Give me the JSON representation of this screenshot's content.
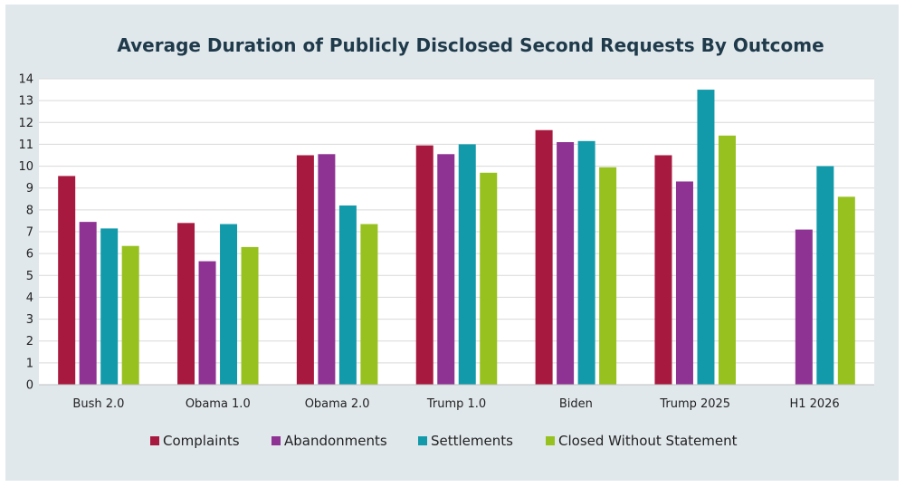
{
  "chart_data": {
    "type": "bar",
    "title": "Average Duration of Publicly Disclosed Second Requests By Outcome",
    "xlabel": "",
    "ylabel": "",
    "ylim": [
      0,
      14
    ],
    "yticks": [
      0,
      1,
      2,
      3,
      4,
      5,
      6,
      7,
      8,
      9,
      10,
      11,
      12,
      13,
      14
    ],
    "grid": true,
    "legend_position": "bottom",
    "categories": [
      "Bush 2.0",
      "Obama 1.0",
      "Obama 2.0",
      "Trump 1.0",
      "Biden",
      "Trump 2025",
      "H1 2026"
    ],
    "series": [
      {
        "name": "Complaints",
        "color": "#a8193f",
        "values": [
          9.55,
          7.4,
          10.5,
          10.95,
          11.65,
          10.5,
          null
        ]
      },
      {
        "name": "Abandonments",
        "color": "#8e3393",
        "values": [
          7.45,
          5.65,
          10.55,
          10.55,
          11.1,
          9.3,
          7.1
        ]
      },
      {
        "name": "Settlements",
        "color": "#129aaa",
        "values": [
          7.15,
          7.35,
          8.2,
          11.0,
          11.15,
          13.5,
          10.0
        ]
      },
      {
        "name": "Closed Without Statement",
        "color": "#97c11f",
        "values": [
          6.35,
          6.3,
          7.35,
          9.7,
          9.95,
          11.4,
          8.6
        ]
      }
    ]
  }
}
